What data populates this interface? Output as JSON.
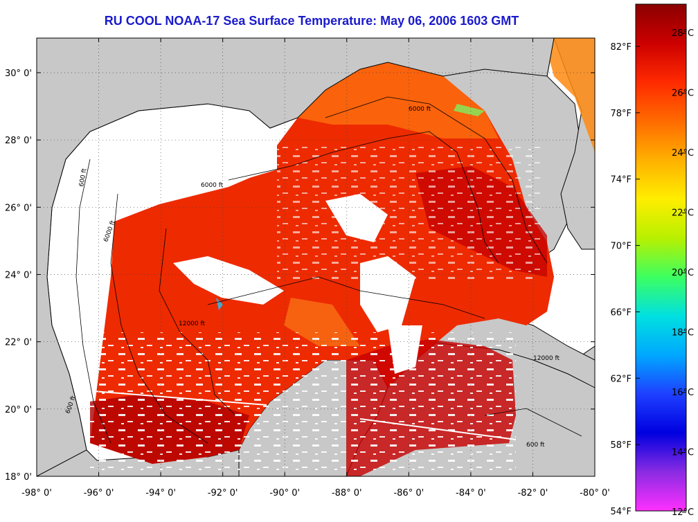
{
  "title": "RU COOL  NOAA-17  Sea Surface Temperature:  May 06, 2006 1603 GMT",
  "axes": {
    "lon_labels": [
      "-98° 0'",
      "-96° 0'",
      "-94° 0'",
      "-92° 0'",
      "-90° 0'",
      "-88° 0'",
      "-86° 0'",
      "-84° 0'",
      "-82° 0'",
      "-80° 0'"
    ],
    "lat_labels": [
      "30° 0'",
      "28° 0'",
      "26° 0'",
      "24° 0'",
      "22° 0'",
      "20° 0'",
      "18° 0'"
    ]
  },
  "colorbar": {
    "celsius_labels": [
      "28°C",
      "26°C",
      "24°C",
      "22°C",
      "20°C",
      "18°C",
      "16°C",
      "14°C",
      "12°C"
    ],
    "fahrenheit_labels": [
      "82°F",
      "78°F",
      "74°F",
      "70°F",
      "66°F",
      "62°F",
      "58°F",
      "54°F"
    ],
    "colors": [
      "#8b0000",
      "#cc0000",
      "#ff2a00",
      "#ff6a00",
      "#ffb000",
      "#ffee00",
      "#b8f000",
      "#3cff60",
      "#00e0e0",
      "#00a8ff",
      "#1e40ff",
      "#0000e0",
      "#8a2be2",
      "#ff30ff"
    ]
  },
  "contour_labels": [
    "600 ft",
    "6000 ft",
    "12000 ft",
    "6000 ft",
    "600 ft",
    "12000 ft",
    "6000 ft",
    "600 ft"
  ],
  "colors": {
    "land": "#c8c8c8",
    "ocean_clouds": "#ffffff",
    "title": "#1a1acc",
    "sst_warm": "#ee2200",
    "sst_hot": "#b00000"
  }
}
